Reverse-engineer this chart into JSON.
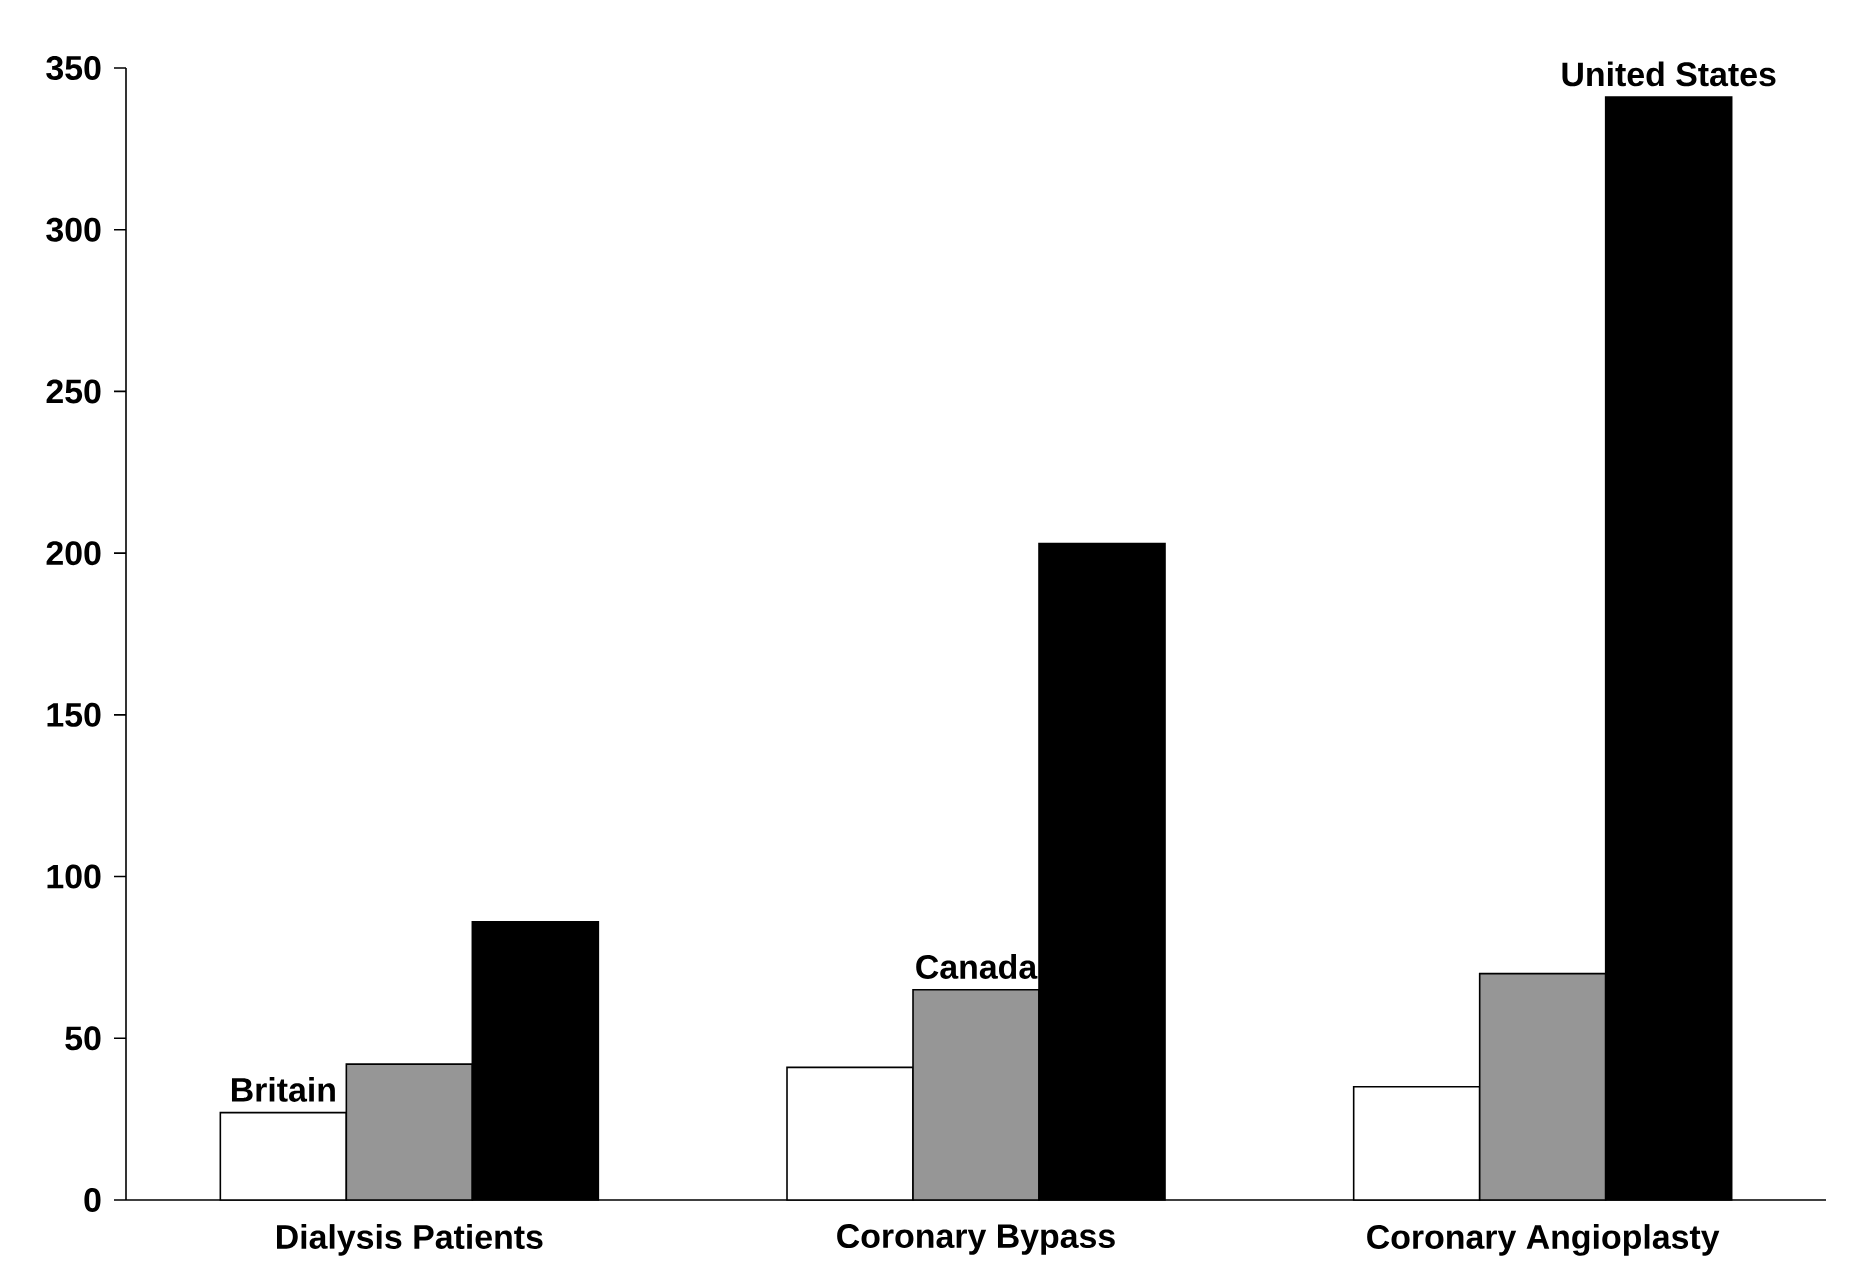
{
  "chart_data": {
    "type": "bar",
    "categories": [
      "Dialysis Patients",
      "Coronary Bypass",
      "Coronary Angioplasty"
    ],
    "series": [
      {
        "name": "Britain",
        "color": "#ffffff",
        "values": [
          27,
          41,
          35
        ]
      },
      {
        "name": "Canada",
        "color": "#969696",
        "values": [
          42,
          65,
          70
        ]
      },
      {
        "name": "United States",
        "color": "#000000",
        "values": [
          86,
          203,
          341
        ]
      }
    ],
    "ylim": [
      0,
      350
    ],
    "yticks": [
      0,
      50,
      100,
      150,
      200,
      250,
      300,
      350
    ],
    "grid": false,
    "legend": false
  }
}
